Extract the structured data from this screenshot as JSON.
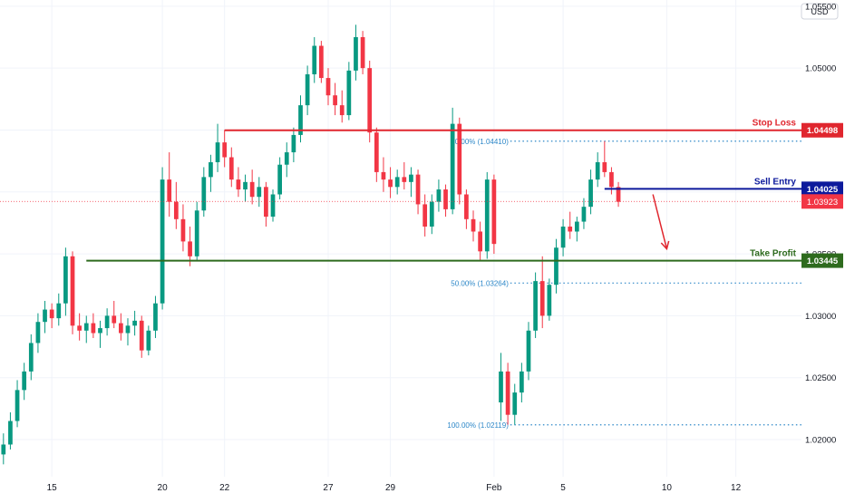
{
  "chart_data": {
    "type": "candlestick",
    "currency_label": "USD",
    "y_ticks": [
      1.02,
      1.025,
      1.03,
      1.035,
      1.04,
      1.045,
      1.05,
      1.055
    ],
    "y_tick_labels": [
      "1.02000",
      "1.02500",
      "1.03000",
      "1.03500",
      "1.04000",
      "1.04500",
      "1.05000",
      "1.05500"
    ],
    "ylim": [
      1.017,
      1.0555
    ],
    "x_ticks": [
      {
        "label": "15",
        "bar": 7
      },
      {
        "label": "20",
        "bar": 23
      },
      {
        "label": "22",
        "bar": 32
      },
      {
        "label": "27",
        "bar": 47
      },
      {
        "label": "29",
        "bar": 56
      },
      {
        "label": "Feb",
        "bar": 71
      },
      {
        "label": "5",
        "bar": 81
      },
      {
        "label": "10",
        "bar": 96
      },
      {
        "label": "12",
        "bar": 106
      }
    ],
    "bars_visible": 116,
    "candles": [
      [
        1.0188,
        1.0205,
        1.018,
        1.0196
      ],
      [
        1.0196,
        1.0222,
        1.0192,
        1.0215
      ],
      [
        1.0215,
        1.0248,
        1.021,
        1.024
      ],
      [
        1.024,
        1.0262,
        1.0232,
        1.0255
      ],
      [
        1.0255,
        1.0285,
        1.0248,
        1.0278
      ],
      [
        1.0278,
        1.0302,
        1.027,
        1.0295
      ],
      [
        1.0295,
        1.0312,
        1.0286,
        1.0305
      ],
      [
        1.0305,
        1.031,
        1.029,
        1.0298
      ],
      [
        1.0298,
        1.0318,
        1.0292,
        1.031
      ],
      [
        1.031,
        1.0355,
        1.03,
        1.0348
      ],
      [
        1.0348,
        1.0352,
        1.0285,
        1.0292
      ],
      [
        1.0292,
        1.0302,
        1.028,
        1.0288
      ],
      [
        1.0288,
        1.03,
        1.0278,
        1.0294
      ],
      [
        1.0294,
        1.0302,
        1.0282,
        1.0286
      ],
      [
        1.0286,
        1.0296,
        1.0274,
        1.029
      ],
      [
        1.029,
        1.0306,
        1.0284,
        1.03
      ],
      [
        1.03,
        1.0312,
        1.029,
        1.0294
      ],
      [
        1.0294,
        1.0302,
        1.028,
        1.0286
      ],
      [
        1.0286,
        1.0298,
        1.0276,
        1.0292
      ],
      [
        1.0292,
        1.0304,
        1.0284,
        1.0296
      ],
      [
        1.0296,
        1.03,
        1.0266,
        1.0272
      ],
      [
        1.0272,
        1.0292,
        1.0268,
        1.0288
      ],
      [
        1.0288,
        1.0316,
        1.0282,
        1.031
      ],
      [
        1.031,
        1.042,
        1.0305,
        1.041
      ],
      [
        1.041,
        1.0432,
        1.038,
        1.0392
      ],
      [
        1.0392,
        1.0408,
        1.037,
        1.0378
      ],
      [
        1.0378,
        1.039,
        1.0352,
        1.036
      ],
      [
        1.036,
        1.0372,
        1.034,
        1.0348
      ],
      [
        1.0348,
        1.0392,
        1.0344,
        1.0385
      ],
      [
        1.0385,
        1.042,
        1.038,
        1.0412
      ],
      [
        1.0412,
        1.043,
        1.04,
        1.0424
      ],
      [
        1.0424,
        1.0455,
        1.0416,
        1.044
      ],
      [
        1.044,
        1.045,
        1.042,
        1.0428
      ],
      [
        1.0428,
        1.0436,
        1.0404,
        1.041
      ],
      [
        1.041,
        1.042,
        1.0396,
        1.0402
      ],
      [
        1.0402,
        1.0414,
        1.0392,
        1.0408
      ],
      [
        1.0408,
        1.0418,
        1.039,
        1.0396
      ],
      [
        1.0396,
        1.0412,
        1.0388,
        1.0404
      ],
      [
        1.0404,
        1.0408,
        1.0372,
        1.038
      ],
      [
        1.038,
        1.0402,
        1.0376,
        1.0398
      ],
      [
        1.0398,
        1.0428,
        1.0394,
        1.0422
      ],
      [
        1.0422,
        1.044,
        1.0412,
        1.0432
      ],
      [
        1.0432,
        1.0452,
        1.0424,
        1.0446
      ],
      [
        1.0446,
        1.0478,
        1.044,
        1.047
      ],
      [
        1.047,
        1.0502,
        1.0462,
        1.0495
      ],
      [
        1.0495,
        1.0525,
        1.0488,
        1.0518
      ],
      [
        1.0518,
        1.0522,
        1.0488,
        1.0492
      ],
      [
        1.0492,
        1.05,
        1.047,
        1.0478
      ],
      [
        1.0478,
        1.0488,
        1.0462,
        1.047
      ],
      [
        1.047,
        1.0482,
        1.0456,
        1.0462
      ],
      [
        1.0462,
        1.0505,
        1.0458,
        1.0498
      ],
      [
        1.0498,
        1.0535,
        1.049,
        1.0525
      ],
      [
        1.0525,
        1.053,
        1.0495,
        1.05
      ],
      [
        1.05,
        1.0506,
        1.044,
        1.0448
      ],
      [
        1.0448,
        1.0452,
        1.0408,
        1.0416
      ],
      [
        1.0416,
        1.0428,
        1.04,
        1.041
      ],
      [
        1.041,
        1.042,
        1.0395,
        1.0404
      ],
      [
        1.0404,
        1.0418,
        1.0398,
        1.0412
      ],
      [
        1.0412,
        1.0424,
        1.0402,
        1.0408
      ],
      [
        1.0408,
        1.042,
        1.0396,
        1.0414
      ],
      [
        1.0414,
        1.0418,
        1.0382,
        1.039
      ],
      [
        1.039,
        1.0398,
        1.0364,
        1.0372
      ],
      [
        1.0372,
        1.0398,
        1.0366,
        1.0392
      ],
      [
        1.0392,
        1.041,
        1.0384,
        1.0402
      ],
      [
        1.0402,
        1.0406,
        1.038,
        1.0386
      ],
      [
        1.0386,
        1.0468,
        1.0382,
        1.0455
      ],
      [
        1.0455,
        1.046,
        1.039,
        1.0398
      ],
      [
        1.0398,
        1.0402,
        1.037,
        1.0378
      ],
      [
        1.0378,
        1.0385,
        1.036,
        1.0368
      ],
      [
        1.0368,
        1.0376,
        1.0345,
        1.0352
      ],
      [
        1.0352,
        1.0416,
        1.0346,
        1.041
      ],
      [
        1.041,
        1.0414,
        1.035,
        1.0358
      ],
      [
        1.023,
        1.027,
        1.0215,
        1.0255
      ],
      [
        1.0255,
        1.0262,
        1.0212,
        1.022
      ],
      [
        1.022,
        1.0245,
        1.0212,
        1.0238
      ],
      [
        1.0238,
        1.0262,
        1.023,
        1.0255
      ],
      [
        1.0255,
        1.0295,
        1.0248,
        1.0288
      ],
      [
        1.0288,
        1.0335,
        1.0282,
        1.0328
      ],
      [
        1.0328,
        1.0348,
        1.029,
        1.03
      ],
      [
        1.03,
        1.033,
        1.0296,
        1.0325
      ],
      [
        1.0325,
        1.0362,
        1.0318,
        1.0355
      ],
      [
        1.0355,
        1.0378,
        1.0348,
        1.0372
      ],
      [
        1.0372,
        1.0384,
        1.0362,
        1.0368
      ],
      [
        1.0368,
        1.038,
        1.036,
        1.0376
      ],
      [
        1.0376,
        1.0395,
        1.037,
        1.0388
      ],
      [
        1.0388,
        1.0418,
        1.0382,
        1.041
      ],
      [
        1.041,
        1.0432,
        1.0404,
        1.0424
      ],
      [
        1.0424,
        1.0441,
        1.0412,
        1.0416
      ],
      [
        1.0416,
        1.042,
        1.0398,
        1.0404
      ],
      [
        1.0404,
        1.0408,
        1.0388,
        1.0392
      ]
    ],
    "last_price": 1.03923,
    "last_price_label": "1.03923",
    "levels": [
      {
        "name": "Stop Loss",
        "value": 1.04498,
        "label": "Stop Loss",
        "price_label": "1.04498",
        "color": "#e0262e",
        "start_bar": 32
      },
      {
        "name": "Sell Entry",
        "value": 1.04025,
        "label": "Sell Entry",
        "price_label": "1.04025",
        "color": "#0d1a9c",
        "start_bar": 87
      },
      {
        "name": "Take Profit",
        "value": 1.03445,
        "label": "Take Profit",
        "price_label": "1.03445",
        "color": "#2e6b1e",
        "start_bar": 12
      }
    ],
    "fib_levels": [
      {
        "label": "0.00% (1.04410)",
        "value": 1.0441,
        "start_bar": 71,
        "color": "#2c87c8"
      },
      {
        "label": "50.00% (1.03264)",
        "value": 1.03264,
        "start_bar": 71,
        "color": "#2c87c8"
      },
      {
        "label": "100.00% (1.02119)",
        "value": 1.02119,
        "start_bar": 71,
        "color": "#2c87c8"
      }
    ],
    "projection_arrow": {
      "from_bar": 94,
      "from_value": 1.0398,
      "to_bar": 96,
      "to_value": 1.0354,
      "color": "#e0262e"
    },
    "colors": {
      "up": "#089981",
      "down": "#f23645",
      "grid": "#f0f3fa",
      "axis_text": "#131722",
      "background": "#ffffff",
      "last_price_line": "#f23645"
    }
  }
}
